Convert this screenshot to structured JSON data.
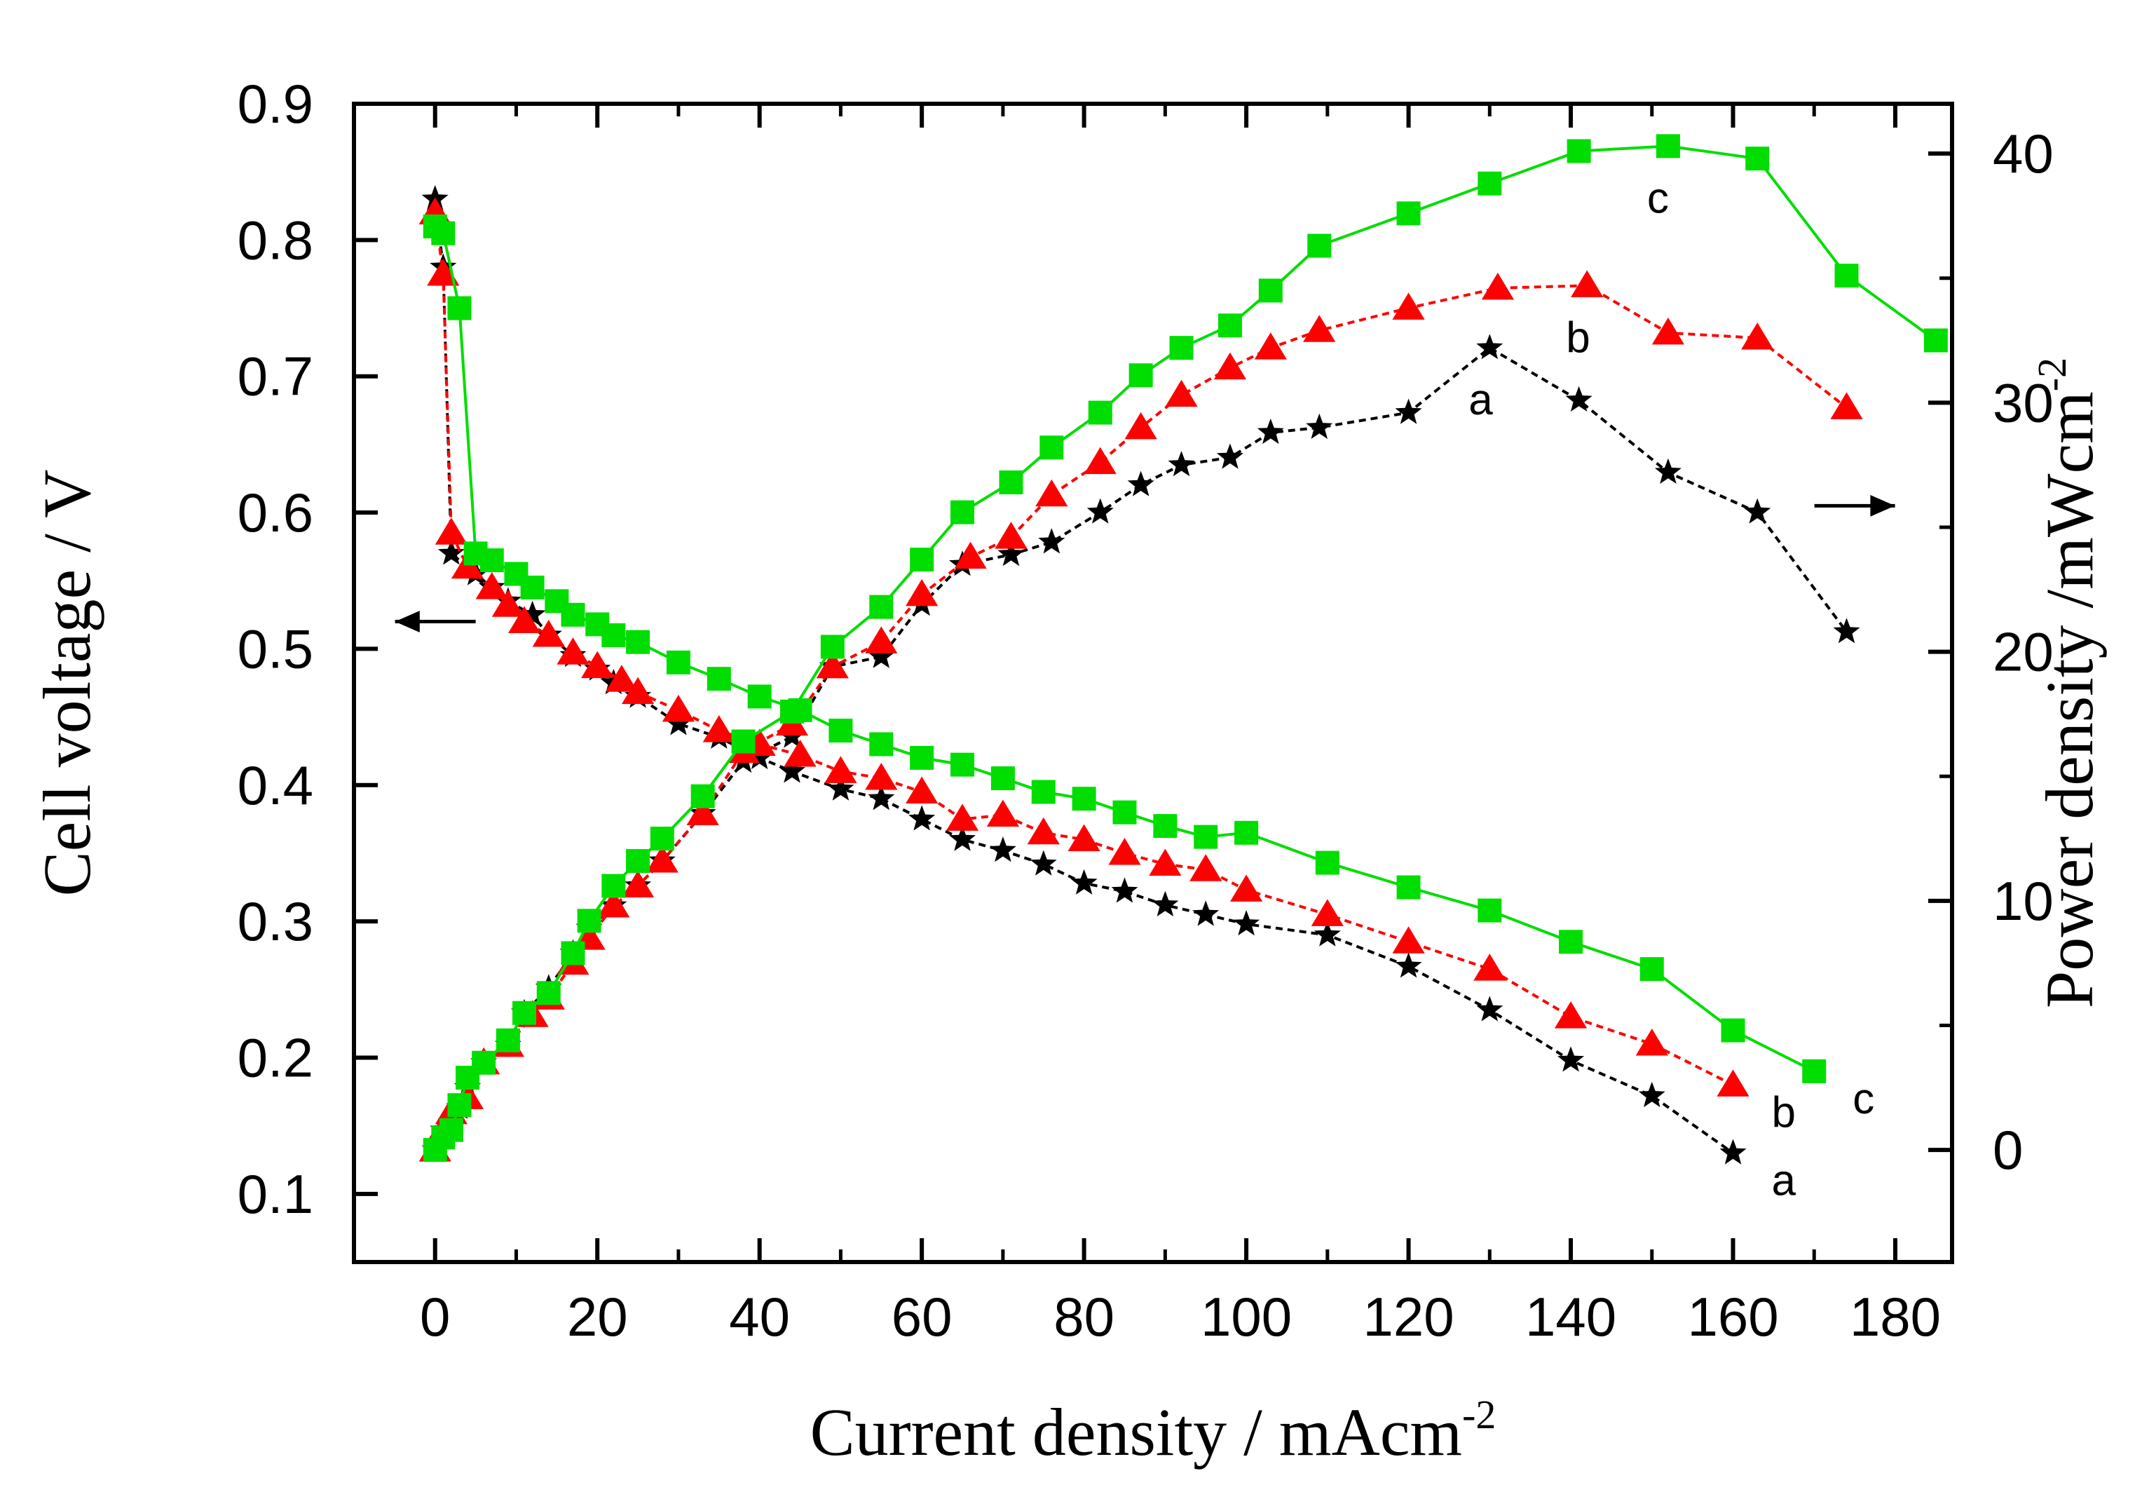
{
  "chart_data": {
    "type": "line",
    "xlabel": "Current density / mAcm",
    "xlabel_sup": "-2",
    "ylabel_left": "Cell voltage / V",
    "ylabel_right": "Power density /mWcm",
    "ylabel_right_sup": "-2",
    "xlim": [
      -10,
      187
    ],
    "ylim_left": [
      0.05,
      0.9
    ],
    "ylim_right": [
      -4.5,
      42
    ],
    "x_ticks": [
      0,
      20,
      40,
      60,
      80,
      100,
      120,
      140,
      160,
      180
    ],
    "y_left_ticks": [
      0.1,
      0.2,
      0.3,
      0.4,
      0.5,
      0.6,
      0.7,
      0.8,
      0.9
    ],
    "y_left_tick_labels": [
      "0.1",
      "0.2",
      "0.3",
      "0.4",
      "0.5",
      "0.6",
      "0.7",
      "0.8",
      "0.9"
    ],
    "y_right_ticks": [
      0,
      10,
      20,
      30,
      40
    ],
    "arrows": [
      {
        "direction": "left",
        "points_to": "left-axis",
        "anchor_x": 5,
        "anchor_y_left": 0.52
      },
      {
        "direction": "right",
        "points_to": "right-axis",
        "anchor_x": 175,
        "anchor_y_left": 0.605
      }
    ],
    "series": [
      {
        "name": "a",
        "label": "a",
        "color": "#000000",
        "marker": "star",
        "dash": "dashed",
        "polarization": {
          "x": [
            0,
            1,
            2,
            5,
            7,
            9,
            12,
            14,
            17,
            20,
            22,
            25,
            30,
            35,
            40,
            44,
            50,
            55,
            60,
            65,
            70,
            75,
            80,
            85,
            90,
            95,
            100,
            110,
            120,
            130,
            140,
            150,
            160
          ],
          "y": [
            0.83,
            0.78,
            0.57,
            0.555,
            0.545,
            0.535,
            0.525,
            0.51,
            0.495,
            0.485,
            0.475,
            0.465,
            0.445,
            0.435,
            0.42,
            0.41,
            0.397,
            0.39,
            0.375,
            0.36,
            0.352,
            0.342,
            0.328,
            0.322,
            0.312,
            0.305,
            0.298,
            0.29,
            0.267,
            0.235,
            0.198,
            0.172,
            0.13
          ]
        },
        "power": {
          "x": [
            0,
            1,
            2,
            3,
            4,
            6,
            9,
            11,
            14,
            17,
            19,
            22,
            25,
            28,
            33,
            38,
            44,
            49,
            55,
            60,
            65,
            71,
            76,
            82,
            87,
            92,
            98,
            103,
            109,
            120,
            130,
            141,
            152,
            163,
            174
          ],
          "y": [
            0,
            0.8,
            1.1,
            1.7,
            2.5,
            3.5,
            4.2,
            5.5,
            6.5,
            7.9,
            8.9,
            9.8,
            10.6,
            11.6,
            13.5,
            15.6,
            16.6,
            19.4,
            19.8,
            21.9,
            23.5,
            23.9,
            24.4,
            25.6,
            26.7,
            27.5,
            27.8,
            28.8,
            29.0,
            29.6,
            32.2,
            30.1,
            27.2,
            25.6,
            20.8
          ]
        }
      },
      {
        "name": "b",
        "label": "b",
        "color": "#ff0000",
        "marker": "triangle",
        "dash": "dashed",
        "polarization": {
          "x": [
            0,
            1,
            2,
            4,
            7,
            9,
            11,
            14,
            17,
            20,
            23,
            25,
            30,
            35,
            40,
            45,
            50,
            55,
            60,
            65,
            70,
            75,
            80,
            85,
            90,
            95,
            100,
            110,
            120,
            130,
            140,
            150,
            160
          ],
          "y": [
            0.82,
            0.775,
            0.585,
            0.56,
            0.545,
            0.532,
            0.52,
            0.51,
            0.497,
            0.487,
            0.477,
            0.468,
            0.455,
            0.44,
            0.43,
            0.422,
            0.41,
            0.405,
            0.395,
            0.375,
            0.378,
            0.365,
            0.36,
            0.35,
            0.342,
            0.338,
            0.323,
            0.305,
            0.285,
            0.265,
            0.23,
            0.21,
            0.18
          ]
        },
        "power": {
          "x": [
            0,
            1,
            2,
            4,
            6,
            9,
            12,
            14,
            17,
            19,
            22,
            25,
            28,
            33,
            38,
            44,
            49,
            55,
            60,
            66,
            71,
            76,
            82,
            87,
            92,
            98,
            103,
            109,
            120,
            131,
            142,
            152,
            163,
            174
          ],
          "y": [
            0,
            0.8,
            1.5,
            2.1,
            3.5,
            4.2,
            5.4,
            6.1,
            7.5,
            8.5,
            9.8,
            10.6,
            11.6,
            13.5,
            16.0,
            17.1,
            19.4,
            20.4,
            22.3,
            23.8,
            24.6,
            26.3,
            27.6,
            29.0,
            30.3,
            31.4,
            32.2,
            32.9,
            33.8,
            34.6,
            34.7,
            32.8,
            32.6,
            29.8
          ]
        }
      },
      {
        "name": "c",
        "label": "c",
        "color": "#00dd00",
        "marker": "square",
        "dash": "solid",
        "polarization": {
          "x": [
            0,
            1,
            3,
            5,
            7,
            10,
            12,
            15,
            17,
            20,
            22,
            25,
            30,
            35,
            40,
            45,
            50,
            55,
            60,
            65,
            70,
            75,
            80,
            85,
            90,
            95,
            100,
            110,
            120,
            130,
            140,
            150,
            160,
            170
          ],
          "y": [
            0.81,
            0.805,
            0.75,
            0.57,
            0.565,
            0.555,
            0.545,
            0.535,
            0.525,
            0.518,
            0.51,
            0.505,
            0.49,
            0.478,
            0.465,
            0.455,
            0.44,
            0.43,
            0.42,
            0.415,
            0.405,
            0.395,
            0.39,
            0.38,
            0.37,
            0.362,
            0.365,
            0.343,
            0.325,
            0.308,
            0.285,
            0.265,
            0.22,
            0.19
          ]
        },
        "power": {
          "x": [
            0,
            1,
            2,
            3,
            4,
            6,
            9,
            11,
            14,
            17,
            19,
            22,
            25,
            28,
            33,
            38,
            44,
            49,
            55,
            60,
            65,
            71,
            76,
            82,
            87,
            92,
            98,
            103,
            109,
            120,
            130,
            141,
            152,
            163,
            174,
            185
          ],
          "y": [
            0,
            0.5,
            0.8,
            1.8,
            2.9,
            3.5,
            4.4,
            5.5,
            6.3,
            7.9,
            9.2,
            10.6,
            11.6,
            12.5,
            14.2,
            16.4,
            17.6,
            20.2,
            21.8,
            23.7,
            25.6,
            26.8,
            28.2,
            29.6,
            31.1,
            32.2,
            33.1,
            34.5,
            36.3,
            37.6,
            38.8,
            40.1,
            40.3,
            39.8,
            35.1,
            32.5
          ]
        }
      }
    ]
  }
}
